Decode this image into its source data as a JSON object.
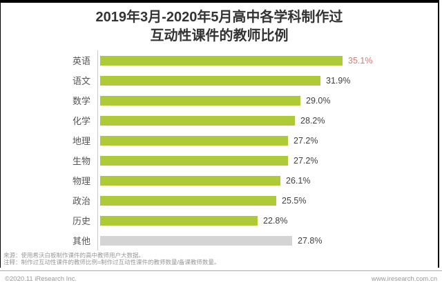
{
  "title": {
    "line1": "2019年3月-2020年5月高中各学科制作过",
    "line2": "互动性课件的教师比例"
  },
  "chart_data": {
    "type": "bar",
    "orientation": "horizontal",
    "title": "2019年3月-2020年5月高中各学科制作过互动性课件的教师比例",
    "categories": [
      "英语",
      "语文",
      "数学",
      "化学",
      "地理",
      "生物",
      "物理",
      "政治",
      "历史",
      "其他"
    ],
    "values": [
      35.1,
      31.9,
      29.0,
      28.2,
      27.2,
      27.2,
      26.1,
      25.5,
      22.8,
      27.8
    ],
    "unit": "%",
    "xlim": [
      0,
      40
    ],
    "grid": "off",
    "legend": "none",
    "bar_color": "#aecb37",
    "other_bar_color": "#d4d4d4",
    "gray_index": 9,
    "highlight_index": 0,
    "highlight_value_color": "#f0736d",
    "value_color": "#404040"
  },
  "notes": {
    "source": "来源：使用希沃白板制作课件的高中教师用户大数据。",
    "note": "注释：制作过互动性课件的教师比例=制作过互动性课件的教师数量/备课教师数量。"
  },
  "footer": {
    "left": "©2020.11  iResearch Inc.",
    "right": "www.iresearch.com.cn"
  }
}
